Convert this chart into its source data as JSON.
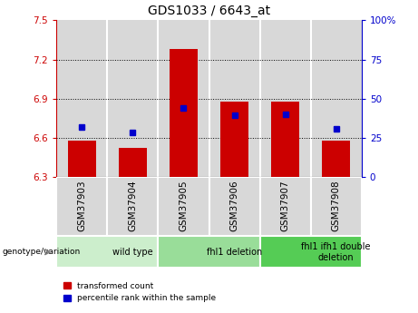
{
  "title": "GDS1033 / 6643_at",
  "samples": [
    "GSM37903",
    "GSM37904",
    "GSM37905",
    "GSM37906",
    "GSM37907",
    "GSM37908"
  ],
  "bar_bottoms": [
    6.3,
    6.3,
    6.3,
    6.3,
    6.3,
    6.3
  ],
  "bar_tops": [
    6.58,
    6.52,
    7.28,
    6.88,
    6.88,
    6.58
  ],
  "blue_dots_y": [
    6.68,
    6.64,
    6.83,
    6.77,
    6.78,
    6.67
  ],
  "ylim_left": [
    6.3,
    7.5
  ],
  "ylim_right": [
    0,
    100
  ],
  "yticks_left": [
    6.3,
    6.6,
    6.9,
    7.2,
    7.5
  ],
  "yticks_right": [
    0,
    25,
    50,
    75,
    100
  ],
  "ytick_labels_left": [
    "6.3",
    "6.6",
    "6.9",
    "7.2",
    "7.5"
  ],
  "ytick_labels_right": [
    "0",
    "25",
    "50",
    "75",
    "100%"
  ],
  "hlines": [
    6.6,
    6.9,
    7.2
  ],
  "bar_color": "#cc0000",
  "dot_color": "#0000cc",
  "left_axis_color": "#cc0000",
  "right_axis_color": "#0000cc",
  "groups": [
    {
      "label": "wild type",
      "start": 0,
      "end": 2,
      "color": "#cceecc"
    },
    {
      "label": "fhl1 deletion",
      "start": 2,
      "end": 4,
      "color": "#99dd99"
    },
    {
      "label": "fhl1 ifh1 double\ndeletion",
      "start": 4,
      "end": 6,
      "color": "#55cc55"
    }
  ],
  "genotype_label": "genotype/variation",
  "legend_red": "transformed count",
  "legend_blue": "percentile rank within the sample",
  "title_fontsize": 10,
  "tick_fontsize": 7.5,
  "bar_width": 0.55,
  "col_bg_color": "#d8d8d8"
}
